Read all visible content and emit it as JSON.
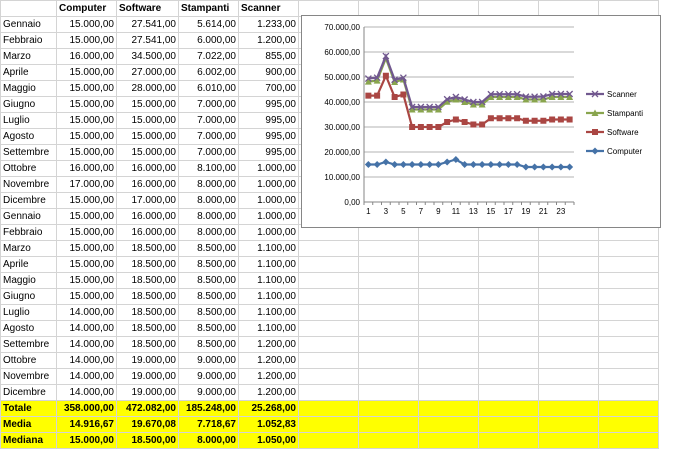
{
  "sheet": {
    "headers": [
      "Computer",
      "Software",
      "Stampanti",
      "Scanner"
    ],
    "rows": [
      {
        "month": "Gennaio",
        "computer": "15.000,00",
        "software": "27.541,00",
        "stampanti": "5.614,00",
        "scanner": "1.233,00"
      },
      {
        "month": "Febbraio",
        "computer": "15.000,00",
        "software": "27.541,00",
        "stampanti": "6.000,00",
        "scanner": "1.200,00"
      },
      {
        "month": "Marzo",
        "computer": "16.000,00",
        "software": "34.500,00",
        "stampanti": "7.022,00",
        "scanner": "855,00"
      },
      {
        "month": "Aprile",
        "computer": "15.000,00",
        "software": "27.000,00",
        "stampanti": "6.002,00",
        "scanner": "900,00"
      },
      {
        "month": "Maggio",
        "computer": "15.000,00",
        "software": "28.000,00",
        "stampanti": "6.010,00",
        "scanner": "700,00"
      },
      {
        "month": "Giugno",
        "computer": "15.000,00",
        "software": "15.000,00",
        "stampanti": "7.000,00",
        "scanner": "995,00"
      },
      {
        "month": "Luglio",
        "computer": "15.000,00",
        "software": "15.000,00",
        "stampanti": "7.000,00",
        "scanner": "995,00"
      },
      {
        "month": "Agosto",
        "computer": "15.000,00",
        "software": "15.000,00",
        "stampanti": "7.000,00",
        "scanner": "995,00"
      },
      {
        "month": "Settembre",
        "computer": "15.000,00",
        "software": "15.000,00",
        "stampanti": "7.000,00",
        "scanner": "995,00"
      },
      {
        "month": "Ottobre",
        "computer": "16.000,00",
        "software": "16.000,00",
        "stampanti": "8.100,00",
        "scanner": "1.000,00"
      },
      {
        "month": "Novembre",
        "computer": "17.000,00",
        "software": "16.000,00",
        "stampanti": "8.000,00",
        "scanner": "1.000,00"
      },
      {
        "month": "Dicembre",
        "computer": "15.000,00",
        "software": "17.000,00",
        "stampanti": "8.000,00",
        "scanner": "1.000,00"
      },
      {
        "month": "Gennaio",
        "computer": "15.000,00",
        "software": "16.000,00",
        "stampanti": "8.000,00",
        "scanner": "1.000,00"
      },
      {
        "month": "Febbraio",
        "computer": "15.000,00",
        "software": "16.000,00",
        "stampanti": "8.000,00",
        "scanner": "1.000,00"
      },
      {
        "month": "Marzo",
        "computer": "15.000,00",
        "software": "18.500,00",
        "stampanti": "8.500,00",
        "scanner": "1.100,00"
      },
      {
        "month": "Aprile",
        "computer": "15.000,00",
        "software": "18.500,00",
        "stampanti": "8.500,00",
        "scanner": "1.100,00"
      },
      {
        "month": "Maggio",
        "computer": "15.000,00",
        "software": "18.500,00",
        "stampanti": "8.500,00",
        "scanner": "1.100,00"
      },
      {
        "month": "Giugno",
        "computer": "15.000,00",
        "software": "18.500,00",
        "stampanti": "8.500,00",
        "scanner": "1.100,00"
      },
      {
        "month": "Luglio",
        "computer": "14.000,00",
        "software": "18.500,00",
        "stampanti": "8.500,00",
        "scanner": "1.100,00"
      },
      {
        "month": "Agosto",
        "computer": "14.000,00",
        "software": "18.500,00",
        "stampanti": "8.500,00",
        "scanner": "1.100,00"
      },
      {
        "month": "Settembre",
        "computer": "14.000,00",
        "software": "18.500,00",
        "stampanti": "8.500,00",
        "scanner": "1.200,00"
      },
      {
        "month": "Ottobre",
        "computer": "14.000,00",
        "software": "19.000,00",
        "stampanti": "9.000,00",
        "scanner": "1.200,00"
      },
      {
        "month": "Novembre",
        "computer": "14.000,00",
        "software": "19.000,00",
        "stampanti": "9.000,00",
        "scanner": "1.200,00"
      },
      {
        "month": "Dicembre",
        "computer": "14.000,00",
        "software": "19.000,00",
        "stampanti": "9.000,00",
        "scanner": "1.200,00"
      }
    ],
    "summary": [
      {
        "label": "Totale",
        "computer": "358.000,00",
        "software": "472.082,00",
        "stampanti": "185.248,00",
        "scanner": "25.268,00"
      },
      {
        "label": "Media",
        "computer": "14.916,67",
        "software": "19.670,08",
        "stampanti": "7.718,67",
        "scanner": "1.052,83"
      },
      {
        "label": "Mediana",
        "computer": "15.000,00",
        "software": "18.500,00",
        "stampanti": "8.000,00",
        "scanner": "1.050,00"
      }
    ],
    "highlight_color": "#ffff00"
  },
  "chart_data": {
    "type": "line",
    "stacked": true,
    "x": [
      1,
      2,
      3,
      4,
      5,
      6,
      7,
      8,
      9,
      10,
      11,
      12,
      13,
      14,
      15,
      16,
      17,
      18,
      19,
      20,
      21,
      22,
      23,
      24
    ],
    "x_tick_labels": [
      "1",
      "3",
      "5",
      "7",
      "9",
      "11",
      "13",
      "15",
      "17",
      "19",
      "21",
      "23"
    ],
    "y_tick_labels": [
      "0,00",
      "10.000,00",
      "20.000,00",
      "30.000,00",
      "40.000,00",
      "50.000,00",
      "60.000,00",
      "70.000,00"
    ],
    "ylim": [
      0,
      70000
    ],
    "grid": true,
    "legend_placement": "right",
    "series": [
      {
        "name": "Computer",
        "color": "#4572a7",
        "marker": "diamond",
        "values": [
          15000,
          15000,
          16000,
          15000,
          15000,
          15000,
          15000,
          15000,
          15000,
          16000,
          17000,
          15000,
          15000,
          15000,
          15000,
          15000,
          15000,
          15000,
          14000,
          14000,
          14000,
          14000,
          14000,
          14000
        ]
      },
      {
        "name": "Software",
        "color": "#aa4643",
        "marker": "square",
        "values": [
          27541,
          27541,
          34500,
          27000,
          28000,
          15000,
          15000,
          15000,
          15000,
          16000,
          16000,
          17000,
          16000,
          16000,
          18500,
          18500,
          18500,
          18500,
          18500,
          18500,
          18500,
          19000,
          19000,
          19000
        ]
      },
      {
        "name": "Stampanti",
        "color": "#89a54e",
        "marker": "triangle",
        "values": [
          5614,
          6000,
          7022,
          6002,
          6010,
          7000,
          7000,
          7000,
          7000,
          8100,
          8000,
          8000,
          8000,
          8000,
          8500,
          8500,
          8500,
          8500,
          8500,
          8500,
          8500,
          9000,
          9000,
          9000
        ]
      },
      {
        "name": "Scanner",
        "color": "#71588f",
        "marker": "x",
        "values": [
          1233,
          1200,
          855,
          900,
          700,
          995,
          995,
          995,
          995,
          1000,
          1000,
          1000,
          1000,
          1000,
          1100,
          1100,
          1100,
          1100,
          1100,
          1100,
          1200,
          1200,
          1200,
          1200
        ]
      }
    ]
  }
}
